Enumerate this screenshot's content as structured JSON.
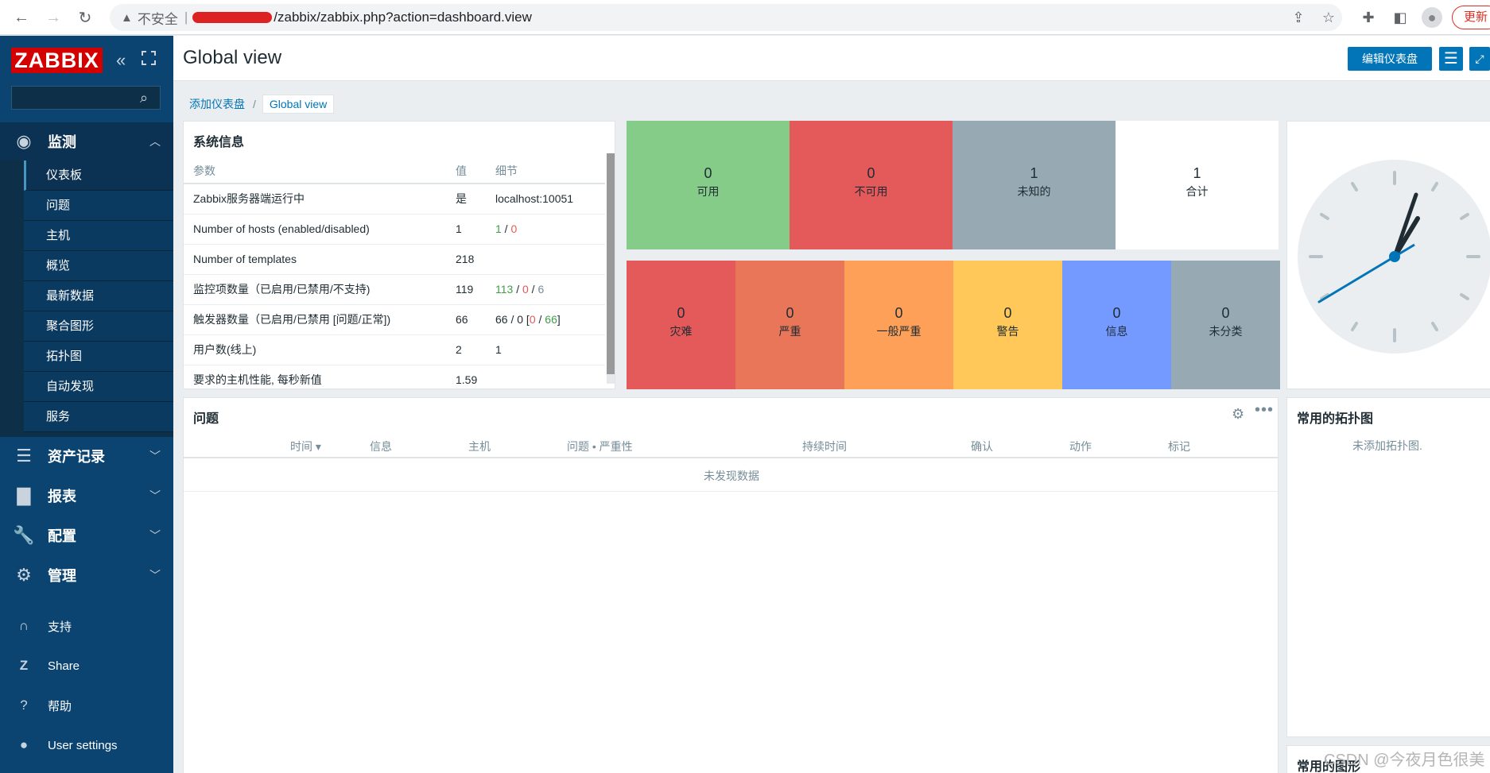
{
  "browser": {
    "security_label": "不安全",
    "url": "/zabbix/zabbix.php?action=dashboard.view",
    "update_label": "更新"
  },
  "sidebar": {
    "logo": "ZABBIX",
    "search_placeholder": "",
    "sections": [
      {
        "label": "监测",
        "icon": "eye-icon"
      },
      {
        "label": "资产记录",
        "icon": "list-icon"
      },
      {
        "label": "报表",
        "icon": "bar-chart-icon"
      },
      {
        "label": "配置",
        "icon": "wrench-icon"
      },
      {
        "label": "管理",
        "icon": "gear-icon"
      }
    ],
    "monitoring_items": [
      "仪表板",
      "问题",
      "主机",
      "概览",
      "最新数据",
      "聚合图形",
      "拓扑图",
      "自动发现",
      "服务"
    ],
    "bottom_items": [
      {
        "label": "支持",
        "icon": "headset-icon"
      },
      {
        "label": "Share",
        "icon": "share-icon"
      },
      {
        "label": "帮助",
        "icon": "help-icon"
      },
      {
        "label": "User settings",
        "icon": "user-icon"
      }
    ]
  },
  "header": {
    "title": "Global view",
    "edit_button": "编辑仪表盘"
  },
  "breadcrumb": [
    "添加仪表盘",
    "Global view"
  ],
  "system_info": {
    "title": "系统信息",
    "columns": [
      "参数",
      "值",
      "细节"
    ],
    "rows": [
      {
        "param": "Zabbix服务器端运行中",
        "value": "是",
        "details": "localhost:10051"
      },
      {
        "param": "Number of hosts (enabled/disabled)",
        "value": "1",
        "d1": "1",
        "d2": "0"
      },
      {
        "param": "Number of templates",
        "value": "218"
      },
      {
        "param": "监控项数量（已启用/已禁用/不支持)",
        "value": "119",
        "d1": "113",
        "d2": "0",
        "d3": "6"
      },
      {
        "param": "触发器数量（已启用/已禁用 [问题/正常])",
        "value": "66",
        "d1": "66 / 0 [",
        "d2": "0",
        "d3": "66",
        "d4": "]"
      },
      {
        "param": "用户数(线上)",
        "value": "2",
        "d1": "1"
      },
      {
        "param": "要求的主机性能, 每秒新值",
        "value": "1.59"
      }
    ]
  },
  "host_availability": [
    {
      "count": "0",
      "label": "可用",
      "color": "#86cc89"
    },
    {
      "count": "0",
      "label": "不可用",
      "color": "#e45959"
    },
    {
      "count": "1",
      "label": "未知的",
      "color": "#97aab3"
    },
    {
      "count": "1",
      "label": "合计",
      "color": "#ffffff"
    }
  ],
  "problems_by_severity": [
    {
      "count": "0",
      "label": "灾难",
      "color": "#e45959"
    },
    {
      "count": "0",
      "label": "严重",
      "color": "#e97659"
    },
    {
      "count": "0",
      "label": "一般严重",
      "color": "#ffa059"
    },
    {
      "count": "0",
      "label": "警告",
      "color": "#ffc859"
    },
    {
      "count": "0",
      "label": "信息",
      "color": "#7499ff"
    },
    {
      "count": "0",
      "label": "未分类",
      "color": "#97aab3"
    }
  ],
  "problems": {
    "title": "问题",
    "columns": [
      "时间 ▾",
      "信息",
      "主机",
      "问题 • 严重性",
      "持续时间",
      "确认",
      "动作",
      "标记"
    ],
    "empty_text": "未发现数据"
  },
  "maps": {
    "title": "常用的拓扑图",
    "empty_text": "未添加拓扑图."
  },
  "graphs": {
    "title": "常用的图形"
  },
  "watermark": "CSDN @今夜月色很美"
}
